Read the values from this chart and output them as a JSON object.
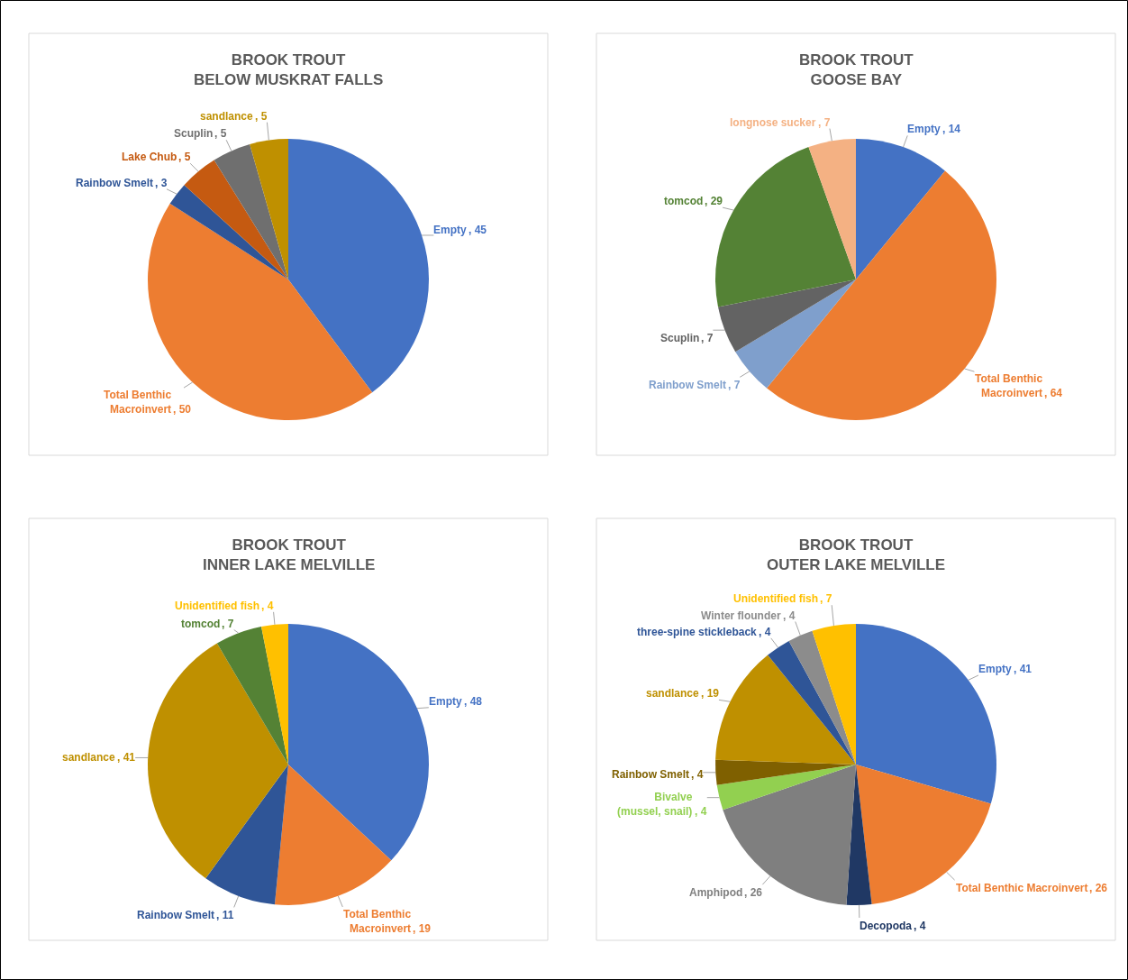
{
  "chart_data": [
    {
      "type": "pie",
      "title": "BROOK TROUT\nBELOW MUSKRAT FALLS",
      "categories": [
        "Empty",
        "Total Benthic Macroinvert",
        "Rainbow Smelt",
        "Lake Chub",
        "Scuplin",
        "sandlance"
      ],
      "values": [
        45,
        50,
        3,
        5,
        5,
        5
      ],
      "colors": [
        "#4472c4",
        "#ed7d31",
        "#2f5597",
        "#c55a11",
        "#6f6f6f",
        "#bf9000"
      ],
      "value_labels": [
        ", 45",
        ", 50",
        ", 3",
        ", 5",
        ", 5",
        ", 5"
      ]
    },
    {
      "type": "pie",
      "title": "BROOK TROUT\nGOOSE BAY",
      "categories": [
        "Empty",
        "Total Benthic Macroinvert",
        "Rainbow Smelt",
        "Scuplin",
        "tomcod",
        "longnose sucker"
      ],
      "values": [
        14,
        64,
        7,
        7,
        29,
        7
      ],
      "colors": [
        "#4472c4",
        "#ed7d31",
        "#7f9fcc",
        "#636363",
        "#548235",
        "#f4b183"
      ],
      "value_labels": [
        ", 14",
        ", 64",
        ", 7",
        ", 7",
        ", 29",
        ", 7"
      ]
    },
    {
      "type": "pie",
      "title": "BROOK TROUT\nINNER LAKE MELVILLE",
      "categories": [
        "Empty",
        "Total Benthic Macroinvert",
        "Rainbow Smelt",
        "sandlance",
        "tomcod",
        "Unidentified fish"
      ],
      "values": [
        48,
        19,
        11,
        41,
        7,
        4
      ],
      "colors": [
        "#4472c4",
        "#ed7d31",
        "#2f5597",
        "#bf9000",
        "#548235",
        "#ffc000"
      ],
      "value_labels": [
        ", 48",
        ", 19",
        ", 11",
        ", 41",
        ", 7",
        ", 4"
      ]
    },
    {
      "type": "pie",
      "title": "BROOK TROUT\nOUTER LAKE MELVILLE",
      "categories": [
        "Empty",
        "Total Benthic Macroinvert",
        "Decopoda",
        "Amphipod",
        "Bivalve (mussel, snail)",
        "Rainbow Smelt",
        "sandlance",
        "three-spine stickleback",
        "Winter flounder",
        "Unidentified fish"
      ],
      "values": [
        41,
        26,
        4,
        26,
        4,
        4,
        19,
        4,
        4,
        7
      ],
      "colors": [
        "#4472c4",
        "#ed7d31",
        "#203864",
        "#7f7f7f",
        "#92d050",
        "#7f6000",
        "#bf9000",
        "#2f5597",
        "#8c8c8c",
        "#ffc000"
      ],
      "value_labels": [
        ", 41",
        ", 26",
        ", 4",
        ", 26",
        ", 4",
        ", 4",
        ", 19",
        ", 4",
        ", 4",
        ", 7"
      ]
    }
  ]
}
